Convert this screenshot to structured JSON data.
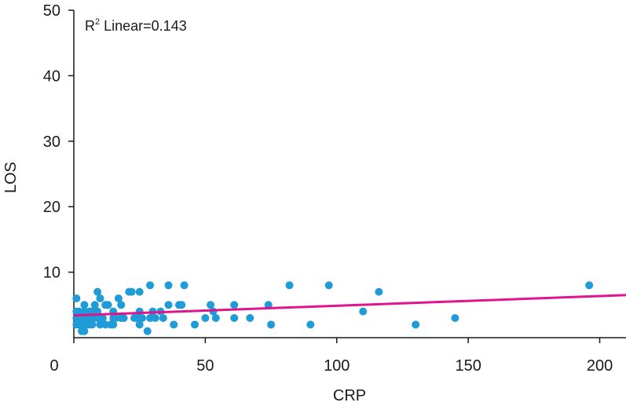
{
  "chart_data": {
    "type": "scatter",
    "xlabel": "CRP",
    "ylabel": "LOS",
    "xlim": [
      0,
      210
    ],
    "ylim": [
      0,
      50
    ],
    "x_ticks": [
      0,
      50,
      100,
      150,
      200
    ],
    "y_ticks": [
      10,
      20,
      30,
      40,
      50
    ],
    "grid": false,
    "annotation": {
      "prefix": "R",
      "sup": "2",
      "suffix": " Linear=0.143"
    },
    "colors": {
      "points": "#1f9bd7",
      "fit_line": "#e0148c",
      "axis": "#1a1a1a"
    },
    "fit_line": {
      "x": [
        0,
        210
      ],
      "y": [
        3.4,
        6.5
      ]
    },
    "series": [
      {
        "points": [
          [
            1,
            6
          ],
          [
            1,
            4
          ],
          [
            1,
            3
          ],
          [
            1,
            2
          ],
          [
            2,
            4
          ],
          [
            2,
            3
          ],
          [
            2,
            2
          ],
          [
            3,
            1
          ],
          [
            3,
            3
          ],
          [
            3,
            2
          ],
          [
            4,
            5
          ],
          [
            4,
            4
          ],
          [
            4,
            3
          ],
          [
            4,
            1
          ],
          [
            5,
            3
          ],
          [
            5,
            2
          ],
          [
            6,
            4
          ],
          [
            6,
            2
          ],
          [
            7,
            4
          ],
          [
            7,
            3
          ],
          [
            7,
            2
          ],
          [
            8,
            5
          ],
          [
            8,
            3
          ],
          [
            9,
            7
          ],
          [
            9,
            4
          ],
          [
            9,
            3
          ],
          [
            10,
            6
          ],
          [
            10,
            2
          ],
          [
            11,
            3
          ],
          [
            12,
            5
          ],
          [
            12,
            2
          ],
          [
            13,
            5
          ],
          [
            14,
            2
          ],
          [
            15,
            4
          ],
          [
            15,
            3
          ],
          [
            15,
            2
          ],
          [
            16,
            3
          ],
          [
            17,
            6
          ],
          [
            18,
            5
          ],
          [
            18,
            3
          ],
          [
            19,
            3
          ],
          [
            21,
            7
          ],
          [
            22,
            7
          ],
          [
            23,
            3
          ],
          [
            24,
            3
          ],
          [
            25,
            7
          ],
          [
            25,
            4
          ],
          [
            25,
            2
          ],
          [
            26,
            3
          ],
          [
            28,
            1
          ],
          [
            29,
            8
          ],
          [
            29,
            3
          ],
          [
            30,
            4
          ],
          [
            31,
            3
          ],
          [
            33,
            4
          ],
          [
            34,
            3
          ],
          [
            36,
            8
          ],
          [
            36,
            5
          ],
          [
            38,
            2
          ],
          [
            40,
            5
          ],
          [
            41,
            5
          ],
          [
            42,
            8
          ],
          [
            46,
            2
          ],
          [
            50,
            3
          ],
          [
            52,
            5
          ],
          [
            53,
            4
          ],
          [
            54,
            3
          ],
          [
            61,
            5
          ],
          [
            61,
            3
          ],
          [
            67,
            3
          ],
          [
            74,
            5
          ],
          [
            75,
            2
          ],
          [
            82,
            8
          ],
          [
            90,
            2
          ],
          [
            97,
            8
          ],
          [
            110,
            4
          ],
          [
            116,
            7
          ],
          [
            130,
            2
          ],
          [
            145,
            3
          ],
          [
            196,
            8
          ]
        ]
      }
    ]
  }
}
